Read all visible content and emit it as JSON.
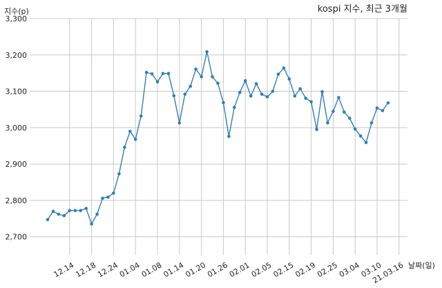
{
  "chart_data": {
    "type": "line",
    "title": "kospi 지수, 최근 3개월",
    "ylabel": "지수(p)",
    "xlabel": "날짜(일)",
    "ylim": [
      2650,
      3300
    ],
    "yticks": [
      2700,
      2800,
      2900,
      3000,
      3100,
      3200,
      3300
    ],
    "ytick_labels": [
      "2,700",
      "2,800",
      "2,900",
      "3,000",
      "3,100",
      "3,200",
      "3,300"
    ],
    "grid": true,
    "color": "#2f7fb5",
    "xtick_labels": [
      "12.14",
      "12.18",
      "12.24",
      "01.04",
      "01.08",
      "01.14",
      "01.20",
      "01.26",
      "02.01",
      "02.05",
      "02.15",
      "02.19",
      "02.25",
      "03.04",
      "03.10",
      "21.03.16"
    ],
    "xtick_index": [
      4,
      8,
      12,
      16,
      20,
      24,
      28,
      32,
      36,
      40,
      44,
      48,
      52,
      56,
      60,
      64
    ],
    "values": [
      2747,
      2770,
      2762,
      2758,
      2772,
      2772,
      2772,
      2778,
      2735,
      2762,
      2806,
      2809,
      2820,
      2873,
      2946,
      2990,
      2968,
      3032,
      3152,
      3148,
      3126,
      3149,
      3149,
      3088,
      3013,
      3092,
      3114,
      3161,
      3140,
      3209,
      3140,
      3122,
      3069,
      2976,
      3056,
      3097,
      3129,
      3087,
      3121,
      3092,
      3085,
      3100,
      3147,
      3164,
      3134,
      3087,
      3107,
      3081,
      3071,
      2995,
      3099,
      3013,
      3045,
      3083,
      3043,
      3026,
      2996,
      2977,
      2959,
      3013,
      3054,
      3047,
      3068
    ]
  }
}
